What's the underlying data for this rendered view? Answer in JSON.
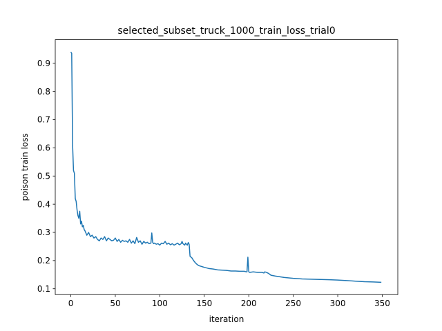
{
  "chart_data": {
    "type": "line",
    "title": "selected_subset_truck_1000_train_loss_trial0",
    "xlabel": "iteration",
    "ylabel": "poison train loss",
    "xlim": [
      -17.5,
      367.5
    ],
    "ylim": [
      0.0793,
      0.9837
    ],
    "xticks": [
      0,
      50,
      100,
      150,
      200,
      250,
      300,
      350
    ],
    "yticks": [
      0.1,
      0.2,
      0.3,
      0.4,
      0.5,
      0.6,
      0.7,
      0.8,
      0.9
    ],
    "grid": false,
    "legend": "none",
    "line_color": "#1f77b4",
    "series": [
      {
        "x": [
          0,
          1,
          2,
          3,
          4,
          5,
          6,
          7,
          8,
          9,
          10,
          11,
          12,
          13,
          14,
          15,
          16,
          18,
          20,
          22,
          24,
          26,
          28,
          30,
          32,
          34,
          36,
          38,
          40,
          42,
          44,
          46,
          48,
          50,
          52,
          54,
          56,
          58,
          60,
          62,
          64,
          66,
          68,
          70,
          72,
          74,
          76,
          78,
          80,
          82,
          84,
          86,
          88,
          90,
          91,
          92,
          93,
          94,
          96,
          98,
          100,
          102,
          104,
          106,
          108,
          110,
          112,
          114,
          116,
          118,
          120,
          122,
          124,
          125,
          126,
          128,
          129,
          130,
          131,
          132,
          133,
          134,
          136,
          138,
          140,
          142,
          144,
          146,
          148,
          150,
          155,
          160,
          165,
          170,
          175,
          180,
          185,
          190,
          195,
          197,
          198,
          199,
          200,
          201,
          205,
          210,
          215,
          217,
          218,
          220,
          222,
          225,
          230,
          240,
          250,
          260,
          270,
          280,
          290,
          300,
          305,
          310,
          320,
          330,
          340,
          349
        ],
        "y": [
          0.94,
          0.935,
          0.61,
          0.52,
          0.51,
          0.42,
          0.41,
          0.38,
          0.36,
          0.35,
          0.375,
          0.33,
          0.34,
          0.32,
          0.325,
          0.31,
          0.305,
          0.29,
          0.3,
          0.285,
          0.29,
          0.28,
          0.285,
          0.275,
          0.27,
          0.28,
          0.275,
          0.285,
          0.27,
          0.28,
          0.275,
          0.27,
          0.272,
          0.28,
          0.268,
          0.275,
          0.265,
          0.272,
          0.268,
          0.27,
          0.265,
          0.275,
          0.262,
          0.27,
          0.26,
          0.282,
          0.265,
          0.27,
          0.258,
          0.268,
          0.262,
          0.265,
          0.26,
          0.262,
          0.298,
          0.265,
          0.26,
          0.262,
          0.258,
          0.26,
          0.255,
          0.262,
          0.26,
          0.268,
          0.258,
          0.262,
          0.256,
          0.26,
          0.255,
          0.258,
          0.262,
          0.256,
          0.26,
          0.268,
          0.26,
          0.255,
          0.262,
          0.258,
          0.255,
          0.264,
          0.258,
          0.215,
          0.21,
          0.2,
          0.192,
          0.186,
          0.182,
          0.18,
          0.178,
          0.176,
          0.172,
          0.17,
          0.167,
          0.166,
          0.165,
          0.163,
          0.163,
          0.162,
          0.162,
          0.16,
          0.16,
          0.212,
          0.16,
          0.158,
          0.16,
          0.158,
          0.158,
          0.156,
          0.16,
          0.158,
          0.155,
          0.148,
          0.145,
          0.14,
          0.137,
          0.135,
          0.134,
          0.133,
          0.132,
          0.131,
          0.13,
          0.129,
          0.127,
          0.125,
          0.124,
          0.123
        ]
      }
    ]
  }
}
